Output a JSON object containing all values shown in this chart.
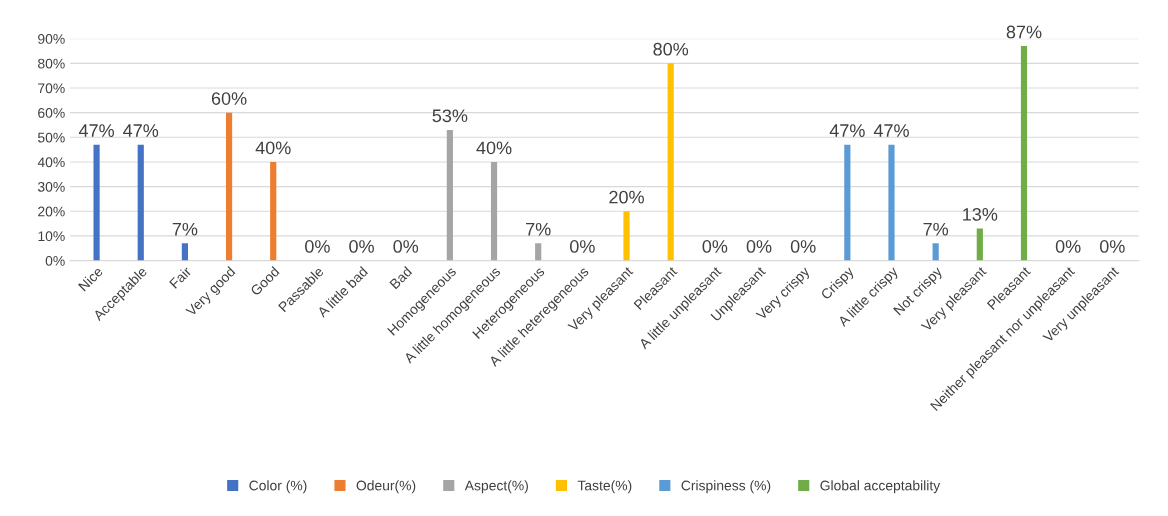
{
  "chart_data": {
    "type": "bar",
    "categories": [
      "Nice",
      "Acceptable",
      "Fair",
      "Very good",
      "Good",
      "Passable",
      "A little bad",
      "Bad",
      "Homogeneous",
      "A little homogeneous",
      "Heterogeneous",
      "A little heteregeneous",
      "Very pleasant",
      "Pleasant",
      "A little unpleasant",
      "Unpleasant",
      "Very crispy",
      "Crispy",
      "A little crispy",
      "Not crispy",
      "Very pleasant",
      "Pleasant",
      "Neither pleasant nor unpleasant",
      "Very unpleasant"
    ],
    "series": [
      {
        "name": "Color (%)",
        "color": "#4472c4",
        "values": [
          47,
          47,
          7,
          null,
          null,
          null,
          null,
          null,
          null,
          null,
          null,
          null,
          null,
          null,
          null,
          null,
          null,
          null,
          null,
          null,
          null,
          null,
          null,
          null
        ],
        "value_labels": [
          "47%",
          "47%",
          "7%",
          null,
          null,
          null,
          null,
          null,
          null,
          null,
          null,
          null,
          null,
          null,
          null,
          null,
          null,
          null,
          null,
          null,
          null,
          null,
          null,
          null
        ]
      },
      {
        "name": "Odeur(%)",
        "color": "#ed7d31",
        "values": [
          null,
          null,
          null,
          60,
          40,
          0,
          0,
          0,
          null,
          null,
          null,
          null,
          null,
          null,
          null,
          null,
          null,
          null,
          null,
          null,
          null,
          null,
          null,
          null
        ],
        "value_labels": [
          null,
          null,
          null,
          "60%",
          "40%",
          "0%",
          "0%",
          "0%",
          null,
          null,
          null,
          null,
          null,
          null,
          null,
          null,
          null,
          null,
          null,
          null,
          null,
          null,
          null,
          null
        ]
      },
      {
        "name": "Aspect(%)",
        "color": "#a5a5a5",
        "values": [
          null,
          null,
          null,
          null,
          null,
          null,
          null,
          null,
          53,
          40,
          7,
          0,
          null,
          null,
          null,
          null,
          null,
          null,
          null,
          null,
          null,
          null,
          null,
          null
        ],
        "value_labels": [
          null,
          null,
          null,
          null,
          null,
          null,
          null,
          null,
          "53%",
          "40%",
          "7%",
          "0%",
          null,
          null,
          null,
          null,
          null,
          null,
          null,
          null,
          null,
          null,
          null,
          null
        ]
      },
      {
        "name": "Taste(%)",
        "color": "#ffc000",
        "values": [
          null,
          null,
          null,
          null,
          null,
          null,
          null,
          null,
          null,
          null,
          null,
          null,
          20,
          80,
          0,
          0,
          null,
          null,
          null,
          null,
          null,
          null,
          null,
          null
        ],
        "value_labels": [
          null,
          null,
          null,
          null,
          null,
          null,
          null,
          null,
          null,
          null,
          null,
          null,
          "20%",
          "80%",
          "0%",
          "0%",
          null,
          null,
          null,
          null,
          null,
          null,
          null,
          null
        ]
      },
      {
        "name": "Crispiness (%)",
        "color": "#5b9bd5",
        "values": [
          null,
          null,
          null,
          null,
          null,
          null,
          null,
          null,
          null,
          null,
          null,
          null,
          null,
          null,
          null,
          null,
          0,
          47,
          47,
          7,
          null,
          null,
          null,
          null
        ],
        "value_labels": [
          null,
          null,
          null,
          null,
          null,
          null,
          null,
          null,
          null,
          null,
          null,
          null,
          null,
          null,
          null,
          null,
          "0%",
          "47%",
          "47%",
          "7%",
          null,
          null,
          null,
          null
        ]
      },
      {
        "name": "Global acceptability",
        "color": "#70ad47",
        "values": [
          null,
          null,
          null,
          null,
          null,
          null,
          null,
          null,
          null,
          null,
          null,
          null,
          null,
          null,
          null,
          null,
          null,
          null,
          null,
          null,
          13,
          87,
          0,
          0
        ],
        "value_labels": [
          null,
          null,
          null,
          null,
          null,
          null,
          null,
          null,
          null,
          null,
          null,
          null,
          null,
          null,
          null,
          null,
          null,
          null,
          null,
          null,
          "13%",
          "87%",
          "0%",
          "0%"
        ]
      }
    ],
    "ylim": [
      0,
      90
    ],
    "yticks": [
      {
        "value": 0,
        "label": "0%"
      },
      {
        "value": 10,
        "label": "10%"
      },
      {
        "value": 20,
        "label": "20%"
      },
      {
        "value": 30,
        "label": "30%"
      },
      {
        "value": 40,
        "label": "40%"
      },
      {
        "value": 50,
        "label": "50%"
      },
      {
        "value": 60,
        "label": "60%"
      },
      {
        "value": 70,
        "label": "70%"
      },
      {
        "value": 80,
        "label": "80%"
      },
      {
        "value": 90,
        "label": "90%"
      }
    ],
    "grid": "y",
    "legend": "bottom"
  }
}
